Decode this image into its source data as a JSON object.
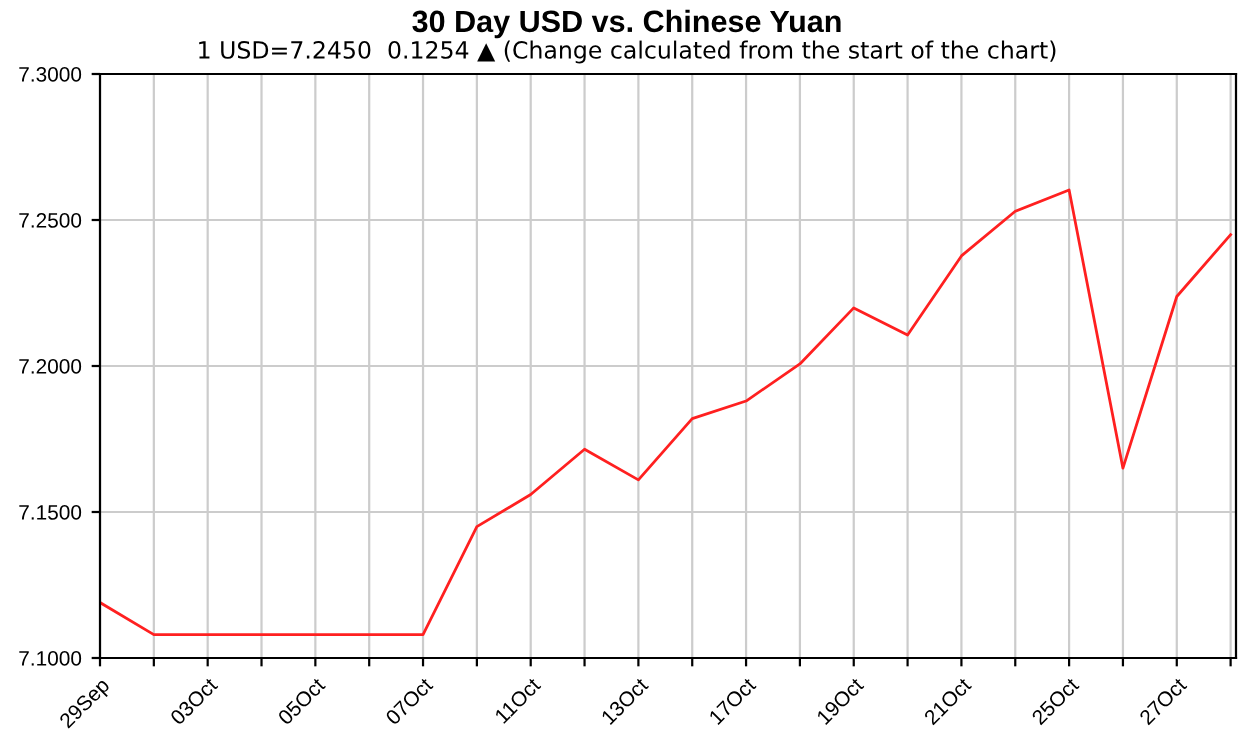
{
  "chart_data": {
    "type": "line",
    "title": "30 Day USD vs. Chinese Yuan",
    "subtitle": "1 USD=7.2450  0.1254 ▲ (Change calculated from the start of the chart)",
    "categories": [
      "29Sep",
      null,
      "03Oct",
      null,
      "05Oct",
      null,
      "07Oct",
      null,
      "11Oct",
      null,
      "13Oct",
      null,
      "17Oct",
      null,
      "19Oct",
      null,
      "21Oct",
      null,
      "25Oct",
      null,
      "27Oct",
      null
    ],
    "series": [
      {
        "color": "#ff2020",
        "values": [
          7.119,
          7.108,
          7.108,
          7.108,
          7.108,
          7.108,
          7.108,
          7.145,
          7.156,
          7.1715,
          7.161,
          7.182,
          7.188,
          7.2007,
          7.2199,
          7.2106,
          7.2377,
          7.253,
          7.2603,
          7.165,
          7.2238,
          7.245
        ]
      }
    ],
    "ylim": [
      7.1,
      7.3
    ],
    "yticks": [
      {
        "value": 7.1,
        "label": "7.1000"
      },
      {
        "value": 7.15,
        "label": "7.1500"
      },
      {
        "value": 7.2,
        "label": "7.2000"
      },
      {
        "value": 7.25,
        "label": "7.2500"
      },
      {
        "value": 7.3,
        "label": "7.3000"
      }
    ],
    "grid": true,
    "marker": "none",
    "line_style": "solid"
  }
}
